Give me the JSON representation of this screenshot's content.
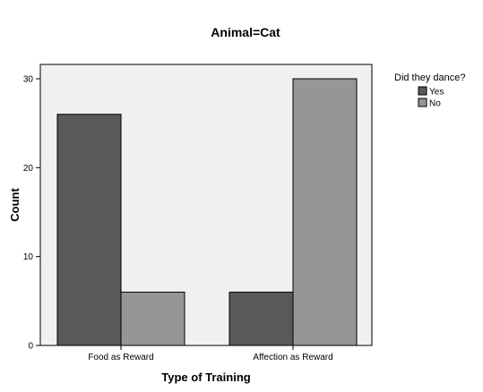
{
  "chart_data": {
    "type": "bar",
    "title": "Animal=Cat",
    "xlabel": "Type of Training",
    "ylabel": "Count",
    "categories": [
      "Food as Reward",
      "Affection as Reward"
    ],
    "series": [
      {
        "name": "Yes",
        "values": [
          26,
          6
        ],
        "color": "#595959"
      },
      {
        "name": "No",
        "values": [
          6,
          30
        ],
        "color": "#969696"
      }
    ],
    "ylim": [
      0,
      30
    ],
    "yticks": [
      0,
      10,
      20,
      30
    ],
    "legend": {
      "title": "Did they dance?",
      "position": "top-right"
    },
    "plot_background": "#f0f0f0",
    "grid": false
  }
}
